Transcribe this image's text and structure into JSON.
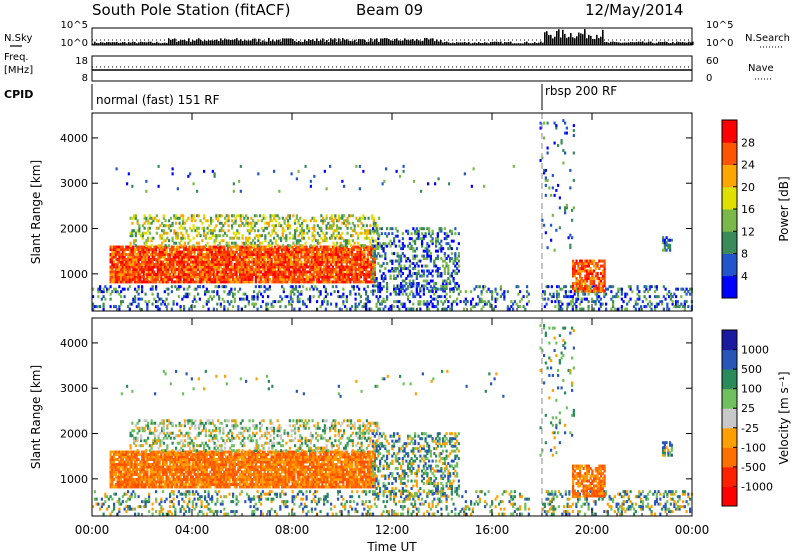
{
  "header": {
    "station": "South Pole Station (fitACF)",
    "beam": "Beam 09",
    "date": "12/May/2014"
  },
  "left_labels": {
    "nsky": "N.Sky",
    "freq_line1": "Freq.",
    "freq_line2": "[MHz]",
    "cpid": "CPID"
  },
  "right_labels": {
    "nsearch": "N.Search",
    "nave": "Nave"
  },
  "panel_ticks": {
    "noise_left_top": "10^5",
    "noise_left_bottom": "10^0",
    "noise_right_top": "10^5",
    "noise_right_bottom": "10^0",
    "freq_left_top": "18",
    "freq_left_bottom": "8",
    "nave_right_top": "60",
    "nave_right_bottom": "0"
  },
  "cpid_segments": [
    {
      "text": "normal (fast) 151 RF",
      "start_hour": 0
    },
    {
      "text": "rbsp 200 RF",
      "start_hour": 18
    }
  ],
  "colors": {
    "power": [
      "#0000ff",
      "#2255cc",
      "#3a8a5a",
      "#7ab84a",
      "#e0e000",
      "#ffa500",
      "#ff5500",
      "#ff0000"
    ],
    "velocity": [
      "#1a1aa0",
      "#2a55b8",
      "#2a8a5a",
      "#70c060",
      "#c8c8c8",
      "#ffa000",
      "#ff7000",
      "#ff2000",
      "#ff0000"
    ]
  },
  "chart_data": [
    {
      "type": "heatmap",
      "name": "power",
      "ylabel": "Slant Range [km]",
      "xlim": [
        0,
        24
      ],
      "ylim": [
        180,
        4550
      ],
      "yticks": [
        "1000",
        "2000",
        "3000",
        "4000"
      ],
      "colorbar": {
        "label": "Power [dB]",
        "range": [
          0,
          32
        ],
        "ticks": [
          "4",
          "8",
          "12",
          "16",
          "20",
          "24",
          "28"
        ]
      }
    },
    {
      "type": "heatmap",
      "name": "velocity",
      "ylabel": "Slant Range [km]",
      "xlabel": "Time UT",
      "xlim": [
        0,
        24
      ],
      "ylim": [
        180,
        4550
      ],
      "xticks": [
        "00:00",
        "04:00",
        "08:00",
        "12:00",
        "16:00",
        "20:00",
        "00:00"
      ],
      "yticks": [
        "1000",
        "2000",
        "3000",
        "4000"
      ],
      "colorbar": {
        "label": "Velocity [m s⁻¹]",
        "ticks": [
          "1000",
          "500",
          "100",
          "25",
          "-25",
          "-100",
          "-500",
          "-1000"
        ]
      }
    }
  ]
}
